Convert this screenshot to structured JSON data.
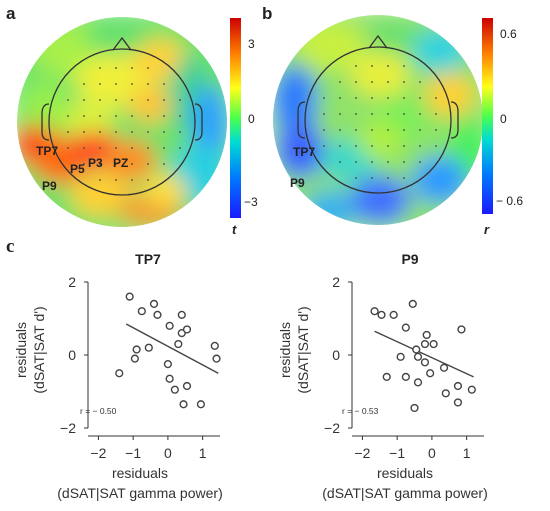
{
  "panels": {
    "a": {
      "letter": "a"
    },
    "b": {
      "letter": "b"
    },
    "c": {
      "letter": "c"
    }
  },
  "topomap_a": {
    "electrode_labels": [
      "TP7",
      "P5",
      "P3",
      "PZ",
      "P9"
    ],
    "colorbar": {
      "max_label": "3",
      "mid_label": "0",
      "min_label": "−3",
      "unit_label": "t"
    }
  },
  "topomap_b": {
    "electrode_labels": [
      "TP7",
      "P9"
    ],
    "colorbar": {
      "max_label": "0.6",
      "mid_label": "0",
      "min_label": "− 0.6",
      "unit_label": "r"
    }
  },
  "colors": {
    "scatter_marker": "#444444",
    "regression_line": "#444444",
    "colormap": [
      "#1a1aff",
      "#00c8ff",
      "#4dff4d",
      "#ffff1a",
      "#ff7f00",
      "#d40000"
    ]
  },
  "chart_data": [
    {
      "type": "scatter",
      "title": "TP7",
      "xlabel_line1": "residuals",
      "xlabel_line2": "(dSAT|SAT gamma power)",
      "ylabel_line1": "residuals",
      "ylabel_line2": "(dSAT|SAT d')",
      "xlim": [
        -2.3,
        1.5
      ],
      "ylim": [
        -2,
        2
      ],
      "xticks": [
        -2,
        -1,
        0,
        1
      ],
      "xtick_labels": [
        "−2",
        "−1",
        "0",
        "1"
      ],
      "yticks": [
        -2,
        0,
        2
      ],
      "ytick_labels": [
        "−2",
        "0",
        "2"
      ],
      "annotation": "r = − 0.50",
      "points": [
        {
          "x": -1.1,
          "y": 1.6
        },
        {
          "x": -0.75,
          "y": 1.2
        },
        {
          "x": -0.4,
          "y": 1.4
        },
        {
          "x": -0.3,
          "y": 1.1
        },
        {
          "x": 0.05,
          "y": 0.8
        },
        {
          "x": 0.4,
          "y": 1.1
        },
        {
          "x": 0.4,
          "y": 0.6
        },
        {
          "x": 0.55,
          "y": 0.7
        },
        {
          "x": 0.3,
          "y": 0.3
        },
        {
          "x": -0.9,
          "y": 0.15
        },
        {
          "x": -0.55,
          "y": 0.2
        },
        {
          "x": -0.95,
          "y": -0.1
        },
        {
          "x": 0.0,
          "y": -0.25
        },
        {
          "x": 1.35,
          "y": 0.25
        },
        {
          "x": 1.4,
          "y": -0.1
        },
        {
          "x": -1.4,
          "y": -0.5
        },
        {
          "x": 0.05,
          "y": -0.65
        },
        {
          "x": 0.2,
          "y": -0.95
        },
        {
          "x": 0.55,
          "y": -0.85
        },
        {
          "x": 0.45,
          "y": -1.35
        },
        {
          "x": 0.95,
          "y": -1.35
        }
      ],
      "fit_line": {
        "x": [
          -1.2,
          1.45
        ],
        "y": [
          0.85,
          -0.5
        ]
      }
    },
    {
      "type": "scatter",
      "title": "P9",
      "xlabel_line1": "residuals",
      "xlabel_line2": "(dSAT|SAT gamma power)",
      "ylabel_line1": "residuals",
      "ylabel_line2": "(dSAT|SAT d')",
      "xlim": [
        -2.3,
        1.5
      ],
      "ylim": [
        -2,
        2
      ],
      "xticks": [
        -2,
        -1,
        0,
        1
      ],
      "xtick_labels": [
        "−2",
        "−1",
        "0",
        "1"
      ],
      "yticks": [
        -2,
        0,
        2
      ],
      "ytick_labels": [
        "−2",
        "0",
        "2"
      ],
      "annotation": "r = − 0.53",
      "points": [
        {
          "x": -1.65,
          "y": 1.2
        },
        {
          "x": -1.45,
          "y": 1.1
        },
        {
          "x": -1.1,
          "y": 1.1
        },
        {
          "x": -0.55,
          "y": 1.4
        },
        {
          "x": -0.75,
          "y": 0.75
        },
        {
          "x": -0.15,
          "y": 0.55
        },
        {
          "x": -0.2,
          "y": 0.3
        },
        {
          "x": 0.05,
          "y": 0.3
        },
        {
          "x": 0.85,
          "y": 0.7
        },
        {
          "x": -0.45,
          "y": 0.15
        },
        {
          "x": -0.4,
          "y": -0.05
        },
        {
          "x": -0.9,
          "y": -0.05
        },
        {
          "x": -0.2,
          "y": -0.2
        },
        {
          "x": 0.35,
          "y": -0.35
        },
        {
          "x": -0.05,
          "y": -0.5
        },
        {
          "x": -1.3,
          "y": -0.6
        },
        {
          "x": -0.75,
          "y": -0.6
        },
        {
          "x": -0.4,
          "y": -0.75
        },
        {
          "x": 0.4,
          "y": -1.05
        },
        {
          "x": 0.75,
          "y": -0.85
        },
        {
          "x": 1.15,
          "y": -0.95
        },
        {
          "x": 0.75,
          "y": -1.3
        },
        {
          "x": -0.5,
          "y": -1.45
        }
      ],
      "fit_line": {
        "x": [
          -1.65,
          1.2
        ],
        "y": [
          0.65,
          -0.6
        ]
      }
    }
  ]
}
